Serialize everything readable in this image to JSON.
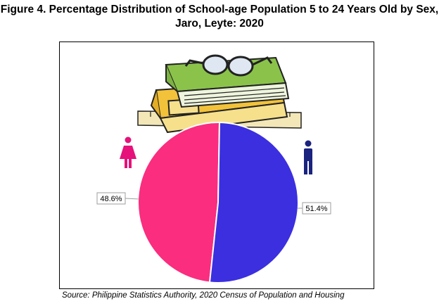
{
  "title_line1": "Figure 4. Percentage Distribution of School-age Population 5 to 24 Years Old by Sex,",
  "title_line2": "Jaro, Leyte: 2020",
  "source": "Source: Philippine Statistics Authority, 2020 Census of Population and Housing",
  "chart_data": {
    "type": "pie",
    "categories": [
      "Female",
      "Male"
    ],
    "values": [
      48.6,
      51.4
    ],
    "data_labels": [
      "48.6%",
      "51.4%"
    ],
    "colors": [
      "#fa2d7f",
      "#3b2fe0"
    ],
    "title": "Figure 4. Percentage Distribution of School-age Population 5 to 24 Years Old by Sex, Jaro, Leyte: 2020",
    "legend": "icons"
  },
  "icons": {
    "female": "female-person-icon",
    "male": "male-person-icon",
    "decoration": "books-and-glasses-illustration"
  }
}
